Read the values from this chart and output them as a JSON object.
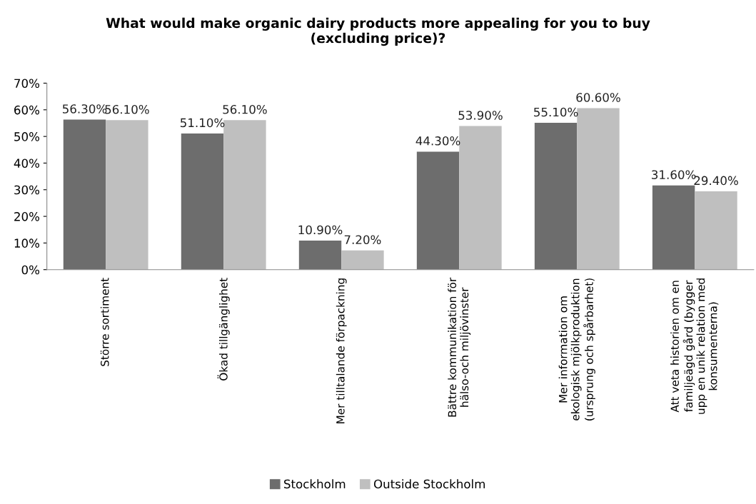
{
  "chart_data": {
    "type": "bar",
    "title": "What would make organic dairy products more appealing for you to buy\n(excluding price)?",
    "categories": [
      "Större sortiment",
      "Ökad tillgänglighet",
      "Mer tilltalande förpackning",
      "Bättre kommunikation för\nhälso-och miljövinster",
      "Mer information om\nekologisk mjölkproduktion\n(ursprung och spårbarhet)",
      "Att veta historien om en\nfamiljeägd gård (bygger\nupp en unik relation med\nkonsumenterna)"
    ],
    "series": [
      {
        "name": "Stockholm",
        "color": "#6d6d6d",
        "values": [
          56.3,
          51.1,
          10.9,
          44.3,
          55.1,
          31.6
        ],
        "value_labels": [
          "56.30%",
          "51.10%",
          "10.90%",
          "44.30%",
          "55.10%",
          "31.60%"
        ]
      },
      {
        "name": "Outside Stockholm",
        "color": "#bfbfbf",
        "values": [
          56.1,
          56.1,
          7.2,
          53.9,
          60.6,
          29.4
        ],
        "value_labels": [
          "56.10%",
          "56.10%",
          "7.20%",
          "53.90%",
          "60.60%",
          "29.40%"
        ]
      }
    ],
    "ylim": [
      0,
      70
    ],
    "yticks": [
      {
        "value": 0,
        "label": "0%"
      },
      {
        "value": 10,
        "label": "10%"
      },
      {
        "value": 20,
        "label": "20%"
      },
      {
        "value": 30,
        "label": "30%"
      },
      {
        "value": 40,
        "label": "40%"
      },
      {
        "value": 50,
        "label": "50%"
      },
      {
        "value": 60,
        "label": "60%"
      },
      {
        "value": 70,
        "label": "70%"
      }
    ],
    "grid": false,
    "legend": "bottom"
  }
}
